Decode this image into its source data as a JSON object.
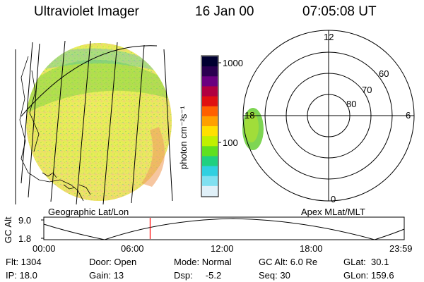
{
  "header": {
    "instrument": "Ultraviolet Imager",
    "date": "16 Jan 00",
    "time": "07:05:08 UT"
  },
  "colorbar": {
    "unit_label": "photon cm⁻²s⁻¹",
    "ticks": [
      "1000",
      "100"
    ],
    "scale": "log",
    "colors": [
      "#000030",
      "#2a0050",
      "#6a0080",
      "#b00040",
      "#e01010",
      "#ff6000",
      "#ffa000",
      "#ffe000",
      "#c0f000",
      "#60e020",
      "#20d080",
      "#30d0e0",
      "#80e0f0",
      "#e0f0f8"
    ]
  },
  "geo_panel": {
    "label": "Geographic Lat/Lon"
  },
  "polar_panel": {
    "label": "Apex MLat/MLT",
    "mlt_labels": {
      "top": "12",
      "right": "6",
      "bottom": "0",
      "left": "18"
    },
    "lat_labels": [
      "60",
      "70",
      "80"
    ]
  },
  "timeline": {
    "axis_label": "GC Alt",
    "y_ticks": [
      "9.0",
      "1.8"
    ],
    "x_ticks": [
      "00:00",
      "06:00",
      "12:00",
      "18:00",
      "23:59"
    ],
    "current_time_fraction": 0.295,
    "current_marker_color": "#ff0000"
  },
  "info": {
    "flt": "Flt: 1304",
    "ip": "IP: 18.0",
    "door": "Door: Open",
    "gain": "Gain: 13",
    "mode": "Mode: Normal",
    "dsp": "Dsp:     -5.2",
    "gc_alt": "GC Alt: 6.0 Re",
    "seq": "Seq: 30",
    "glat": "GLat:  30.1",
    "glon": "GLon: 159.6"
  }
}
